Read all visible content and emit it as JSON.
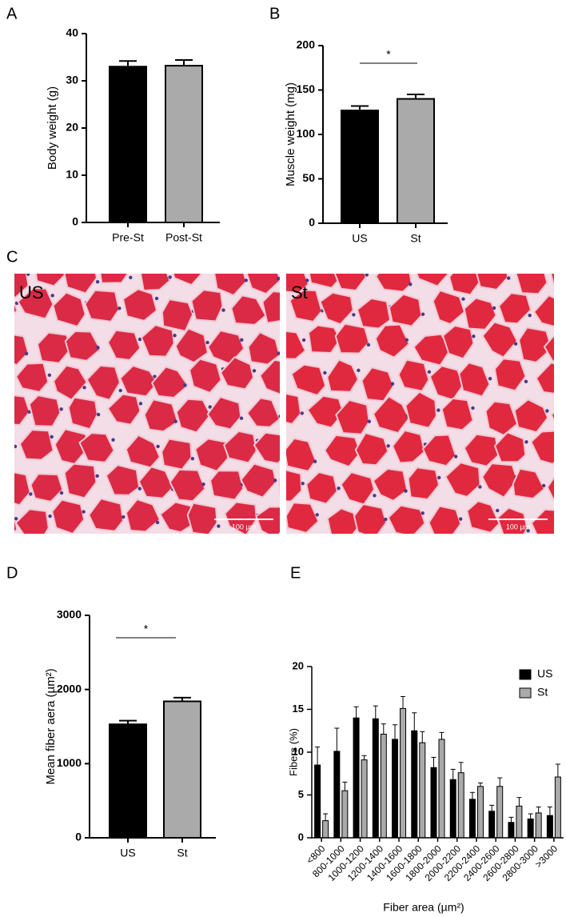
{
  "chart_data": [
    {
      "type": "bar",
      "panel": "A",
      "ylabel": "Body weight (g)",
      "categories": [
        "Pre-St",
        "Post-St"
      ],
      "values": [
        33,
        33.2
      ],
      "errors": [
        1.2,
        1.2
      ],
      "colors": [
        "#000000",
        "#aaaaaa"
      ],
      "ylim": [
        0,
        40
      ],
      "yticks": [
        0,
        10,
        20,
        30,
        40
      ]
    },
    {
      "type": "bar",
      "panel": "B",
      "ylabel": "Muscle weight (mg)",
      "categories": [
        "US",
        "St"
      ],
      "values": [
        127,
        140
      ],
      "errors": [
        5,
        5
      ],
      "colors": [
        "#000000",
        "#aaaaaa"
      ],
      "ylim": [
        0,
        200
      ],
      "yticks": [
        0,
        50,
        100,
        150,
        200
      ],
      "annotation": "*"
    },
    {
      "type": "bar",
      "panel": "D",
      "ylabel": "Mean fiber aera  (µm²)",
      "categories": [
        "US",
        "St"
      ],
      "values": [
        1530,
        1840
      ],
      "errors": [
        50,
        50
      ],
      "colors": [
        "#000000",
        "#aaaaaa"
      ],
      "ylim": [
        0,
        3000
      ],
      "yticks": [
        0,
        1000,
        2000,
        3000
      ],
      "annotation": "*"
    },
    {
      "type": "grouped_bar",
      "panel": "E",
      "ylabel": "Fibers  (%)",
      "xlabel": "Fiber area    (µm²)",
      "categories": [
        "<800",
        "800-1000",
        "1000-1200",
        "1200-1400",
        "1400-1600",
        "1600-1800",
        "1800-2000",
        "2000-2200",
        "2200-2400",
        "2400-2600",
        "2600-2800",
        "2800-3000",
        ">3000"
      ],
      "series": [
        {
          "name": "US",
          "color": "#000000",
          "values": [
            8.5,
            10.1,
            14.0,
            13.9,
            11.5,
            12.5,
            8.2,
            6.8,
            4.5,
            3.1,
            1.8,
            2.2,
            2.6
          ],
          "errors": [
            2.1,
            2.7,
            1.3,
            1.5,
            1.7,
            2.1,
            1.2,
            1.2,
            0.8,
            0.7,
            0.6,
            0.6,
            1.0
          ]
        },
        {
          "name": "St",
          "color": "#aaaaaa",
          "values": [
            2.0,
            5.5,
            9.1,
            12.1,
            15.1,
            11.1,
            11.5,
            7.6,
            6.0,
            6.0,
            3.7,
            2.9,
            7.1
          ],
          "errors": [
            0.8,
            1.0,
            0.5,
            1.2,
            1.4,
            1.3,
            0.8,
            1.2,
            0.4,
            1.0,
            1.0,
            0.7,
            1.5
          ]
        }
      ],
      "ylim": [
        0,
        20
      ],
      "yticks": [
        0,
        5,
        10,
        15,
        20
      ],
      "legend": "upper right"
    }
  ],
  "images": {
    "panel": "C",
    "items": [
      {
        "label": "US",
        "scale_bar": "100 µm"
      },
      {
        "label": "St",
        "scale_bar": "100 µm"
      }
    ]
  }
}
